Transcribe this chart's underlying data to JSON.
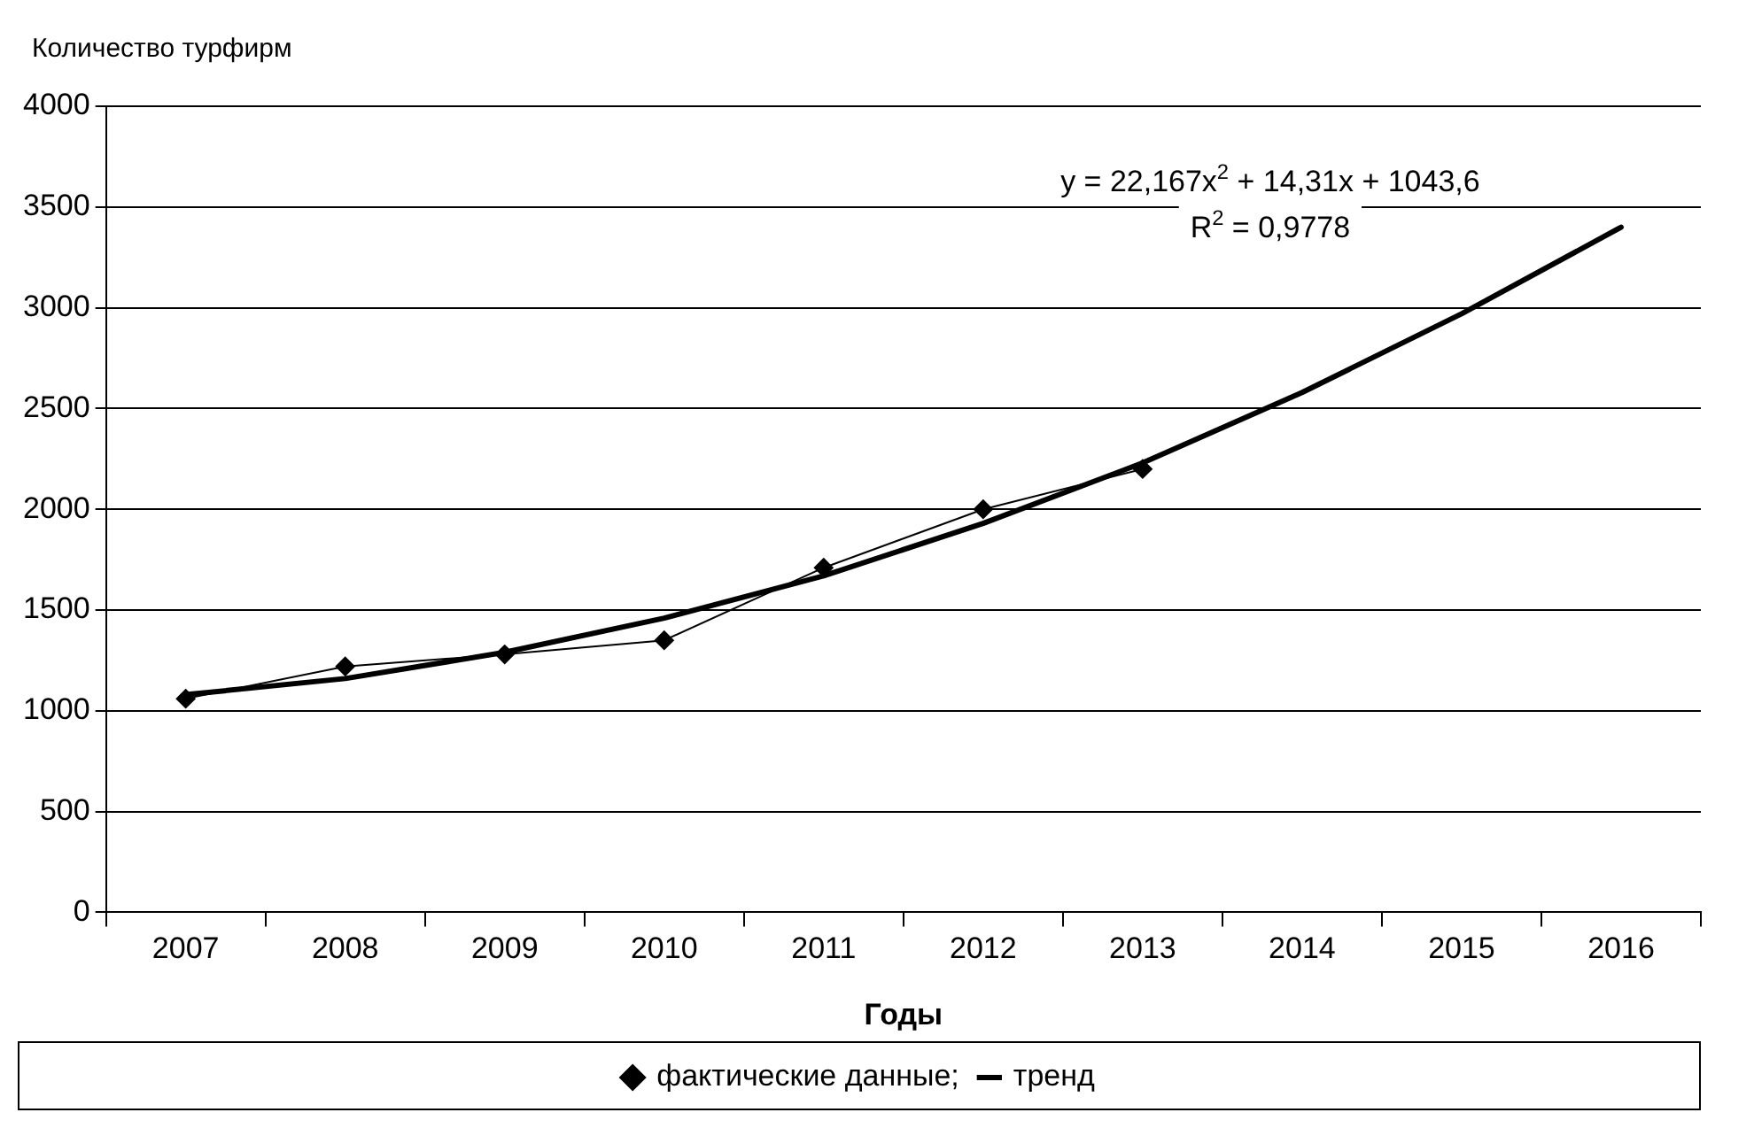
{
  "chart_data": {
    "type": "line",
    "ylabel": "Количество турфирм",
    "xlabel": "Годы",
    "categories": [
      "2007",
      "2008",
      "2009",
      "2010",
      "2011",
      "2012",
      "2013",
      "2014",
      "2015",
      "2016"
    ],
    "series": [
      {
        "name": "фактические данные;",
        "color": "#000000",
        "marker": "diamond",
        "values": [
          1060,
          1220,
          1280,
          1350,
          1710,
          2000,
          2200,
          null,
          null,
          null
        ]
      },
      {
        "name": "тренд",
        "color": "#000000",
        "marker": "none",
        "values": [
          1080,
          1160,
          1290,
          1460,
          1670,
          1930,
          2230,
          2580,
          2970,
          3400
        ]
      }
    ],
    "ylim": [
      0,
      4000
    ],
    "yticks": [
      0,
      500,
      1000,
      1500,
      2000,
      2500,
      3000,
      3500,
      4000
    ],
    "grid": "y",
    "legend": "bottom",
    "annotations": [
      "y = 22,167x$^{2}$ + 14,31x + 1043,6",
      "R$^{2}$ = 0,9778"
    ]
  }
}
